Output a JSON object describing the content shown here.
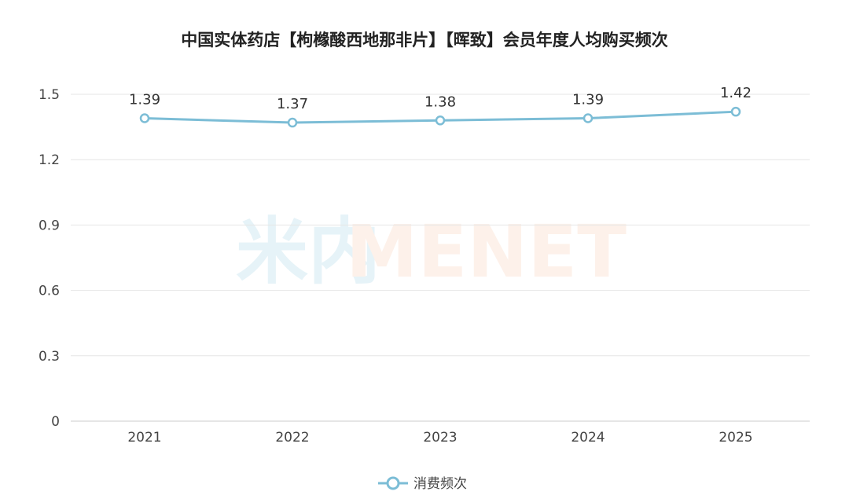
{
  "watermark": {
    "cn": "米内",
    "en": "MENET",
    "color_cn": "#e6f3f8",
    "color_en": "#fdf1ea"
  },
  "chart_data": {
    "type": "line",
    "title": "中国实体药店【枸橼酸西地那非片】【晖致】会员年度人均购买频次",
    "xlabel": "",
    "ylabel": "",
    "categories": [
      "2021",
      "2022",
      "2023",
      "2024",
      "2025"
    ],
    "yticks": [
      "0",
      "0.3",
      "0.6",
      "0.9",
      "1.2",
      "1.5"
    ],
    "ylim": [
      0,
      1.5
    ],
    "grid": true,
    "legend_position": "bottom-center",
    "series": [
      {
        "name": "消费频次",
        "color": "#7cbdd6",
        "values": [
          1.39,
          1.37,
          1.38,
          1.39,
          1.42
        ],
        "labels": [
          "1.39",
          "1.37",
          "1.38",
          "1.39",
          "1.42"
        ]
      }
    ]
  }
}
